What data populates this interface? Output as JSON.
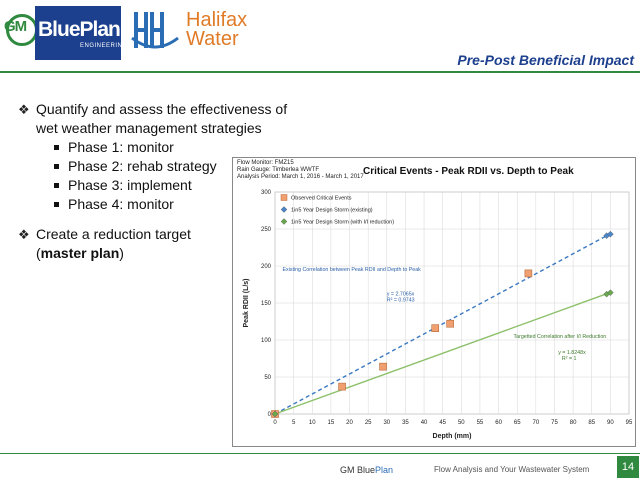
{
  "header": {
    "gm_logo_text": "GM",
    "blueplan_text": "BluePlan",
    "engineering_text": "ENGINEERING",
    "halifax_line1": "Halifax",
    "halifax_line2": "Water",
    "title": "Pre-Post Beneficial Impact"
  },
  "bullets": {
    "item1_line1": "Quantify and assess the effectiveness of",
    "item1_line2": "wet weather management strategies",
    "sub": [
      "Phase 1: monitor",
      "Phase 2: rehab strategy",
      "Phase 3: implement",
      "Phase 4: monitor"
    ],
    "item2_prefix": "Create a reduction target",
    "item2_open": "(",
    "item2_bold": "master plan",
    "item2_close": ")"
  },
  "chart_meta": {
    "line1": "Flow Monitor: FMZ15",
    "line2": "Rain Gauge: Timberlea WWTF",
    "line3": "Analysis Period: March 1, 2016 - March 1, 2017"
  },
  "chart_data": {
    "type": "scatter",
    "title": "Critical Events - Peak RDII vs. Depth to Peak",
    "xlabel": "Depth (mm)",
    "ylabel": "Peak RDII (L/s)",
    "xlim": [
      0,
      95
    ],
    "ylim": [
      0,
      300
    ],
    "x_ticks": [
      0,
      5,
      10,
      15,
      20,
      25,
      30,
      35,
      40,
      45,
      50,
      55,
      60,
      65,
      70,
      75,
      80,
      85,
      90,
      95
    ],
    "y_ticks": [
      0,
      50,
      100,
      150,
      200,
      250,
      300
    ],
    "grid": true,
    "legend_position": "top-left",
    "series": [
      {
        "name": "Observed Critical Events",
        "color": "#f0a070",
        "marker": "square",
        "points": [
          [
            0,
            0
          ],
          [
            18,
            37
          ],
          [
            29,
            64
          ],
          [
            43,
            116
          ],
          [
            47,
            122
          ],
          [
            68,
            190
          ]
        ]
      },
      {
        "name": "1in5 Year Design Storm (existing)",
        "color": "#4a86c8",
        "marker": "diamond",
        "points": [
          [
            0,
            0
          ],
          [
            89,
            241
          ],
          [
            90,
            243
          ]
        ]
      },
      {
        "name": "1in5 Year Design Storm (with I/I reduction)",
        "color": "#6aa84f",
        "marker": "diamond",
        "points": [
          [
            0,
            0
          ],
          [
            89,
            162
          ],
          [
            90,
            164
          ]
        ]
      }
    ],
    "trendlines": [
      {
        "slope": 2.7065,
        "x_end": 90,
        "color": "#3a78c0",
        "style": "dashed",
        "label": "Existing Correlation between Peak RDII and Depth to Peak",
        "equation": "y = 2.7065x",
        "r2": "R² = 0.9743"
      },
      {
        "slope": 1.8248,
        "x_end": 90,
        "color": "#8cc06a",
        "style": "solid",
        "label": "Targetted Correlation after I/I Reduction",
        "equation": "y = 1.8248x",
        "r2": "R² = 1"
      }
    ]
  },
  "footer": {
    "brand_gm": "GM Blue",
    "brand_plan": "Plan",
    "tagline": "Flow Analysis and Your Wastewater System",
    "page_number": "14"
  },
  "colors": {
    "brand_blue": "#1c3f8e",
    "brand_green": "#2f8a3f",
    "halifax_orange": "#e07b28"
  }
}
